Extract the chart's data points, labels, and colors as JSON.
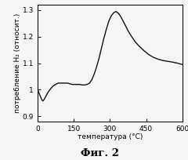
{
  "title": "Фиг. 2",
  "xlabel": "температура (°C)",
  "ylabel": "потребление H₂ (относит.)",
  "xlim": [
    0,
    600
  ],
  "ylim": [
    0.88,
    1.32
  ],
  "xticks": [
    0,
    150,
    300,
    450,
    600
  ],
  "yticks": [
    0.9,
    1.0,
    1.1,
    1.2,
    1.3
  ],
  "ytick_labels": [
    "0.9",
    "1",
    "1.1",
    "1.2",
    "1.3"
  ],
  "curve_x": [
    0,
    5,
    10,
    15,
    18,
    22,
    27,
    32,
    38,
    45,
    55,
    65,
    75,
    85,
    95,
    105,
    115,
    125,
    135,
    145,
    155,
    165,
    175,
    185,
    195,
    205,
    215,
    225,
    235,
    245,
    255,
    265,
    275,
    285,
    295,
    305,
    315,
    325,
    335,
    345,
    355,
    365,
    375,
    390,
    405,
    420,
    440,
    460,
    480,
    500,
    520,
    540,
    560,
    580,
    600
  ],
  "curve_y": [
    1.0,
    0.99,
    0.978,
    0.968,
    0.962,
    0.958,
    0.963,
    0.972,
    0.982,
    0.993,
    1.005,
    1.015,
    1.02,
    1.025,
    1.025,
    1.025,
    1.025,
    1.025,
    1.022,
    1.02,
    1.02,
    1.02,
    1.02,
    1.018,
    1.018,
    1.02,
    1.025,
    1.038,
    1.06,
    1.088,
    1.12,
    1.158,
    1.195,
    1.228,
    1.258,
    1.278,
    1.29,
    1.295,
    1.288,
    1.275,
    1.258,
    1.24,
    1.222,
    1.2,
    1.18,
    1.165,
    1.148,
    1.133,
    1.122,
    1.115,
    1.11,
    1.107,
    1.104,
    1.1,
    1.095
  ],
  "line_color": "#111111",
  "line_width": 1.0,
  "background_color": "#f5f5f5",
  "plot_bg": "#f5f5f5",
  "title_fontsize": 9.5,
  "axis_label_fontsize": 6.5,
  "tick_fontsize": 6.5
}
